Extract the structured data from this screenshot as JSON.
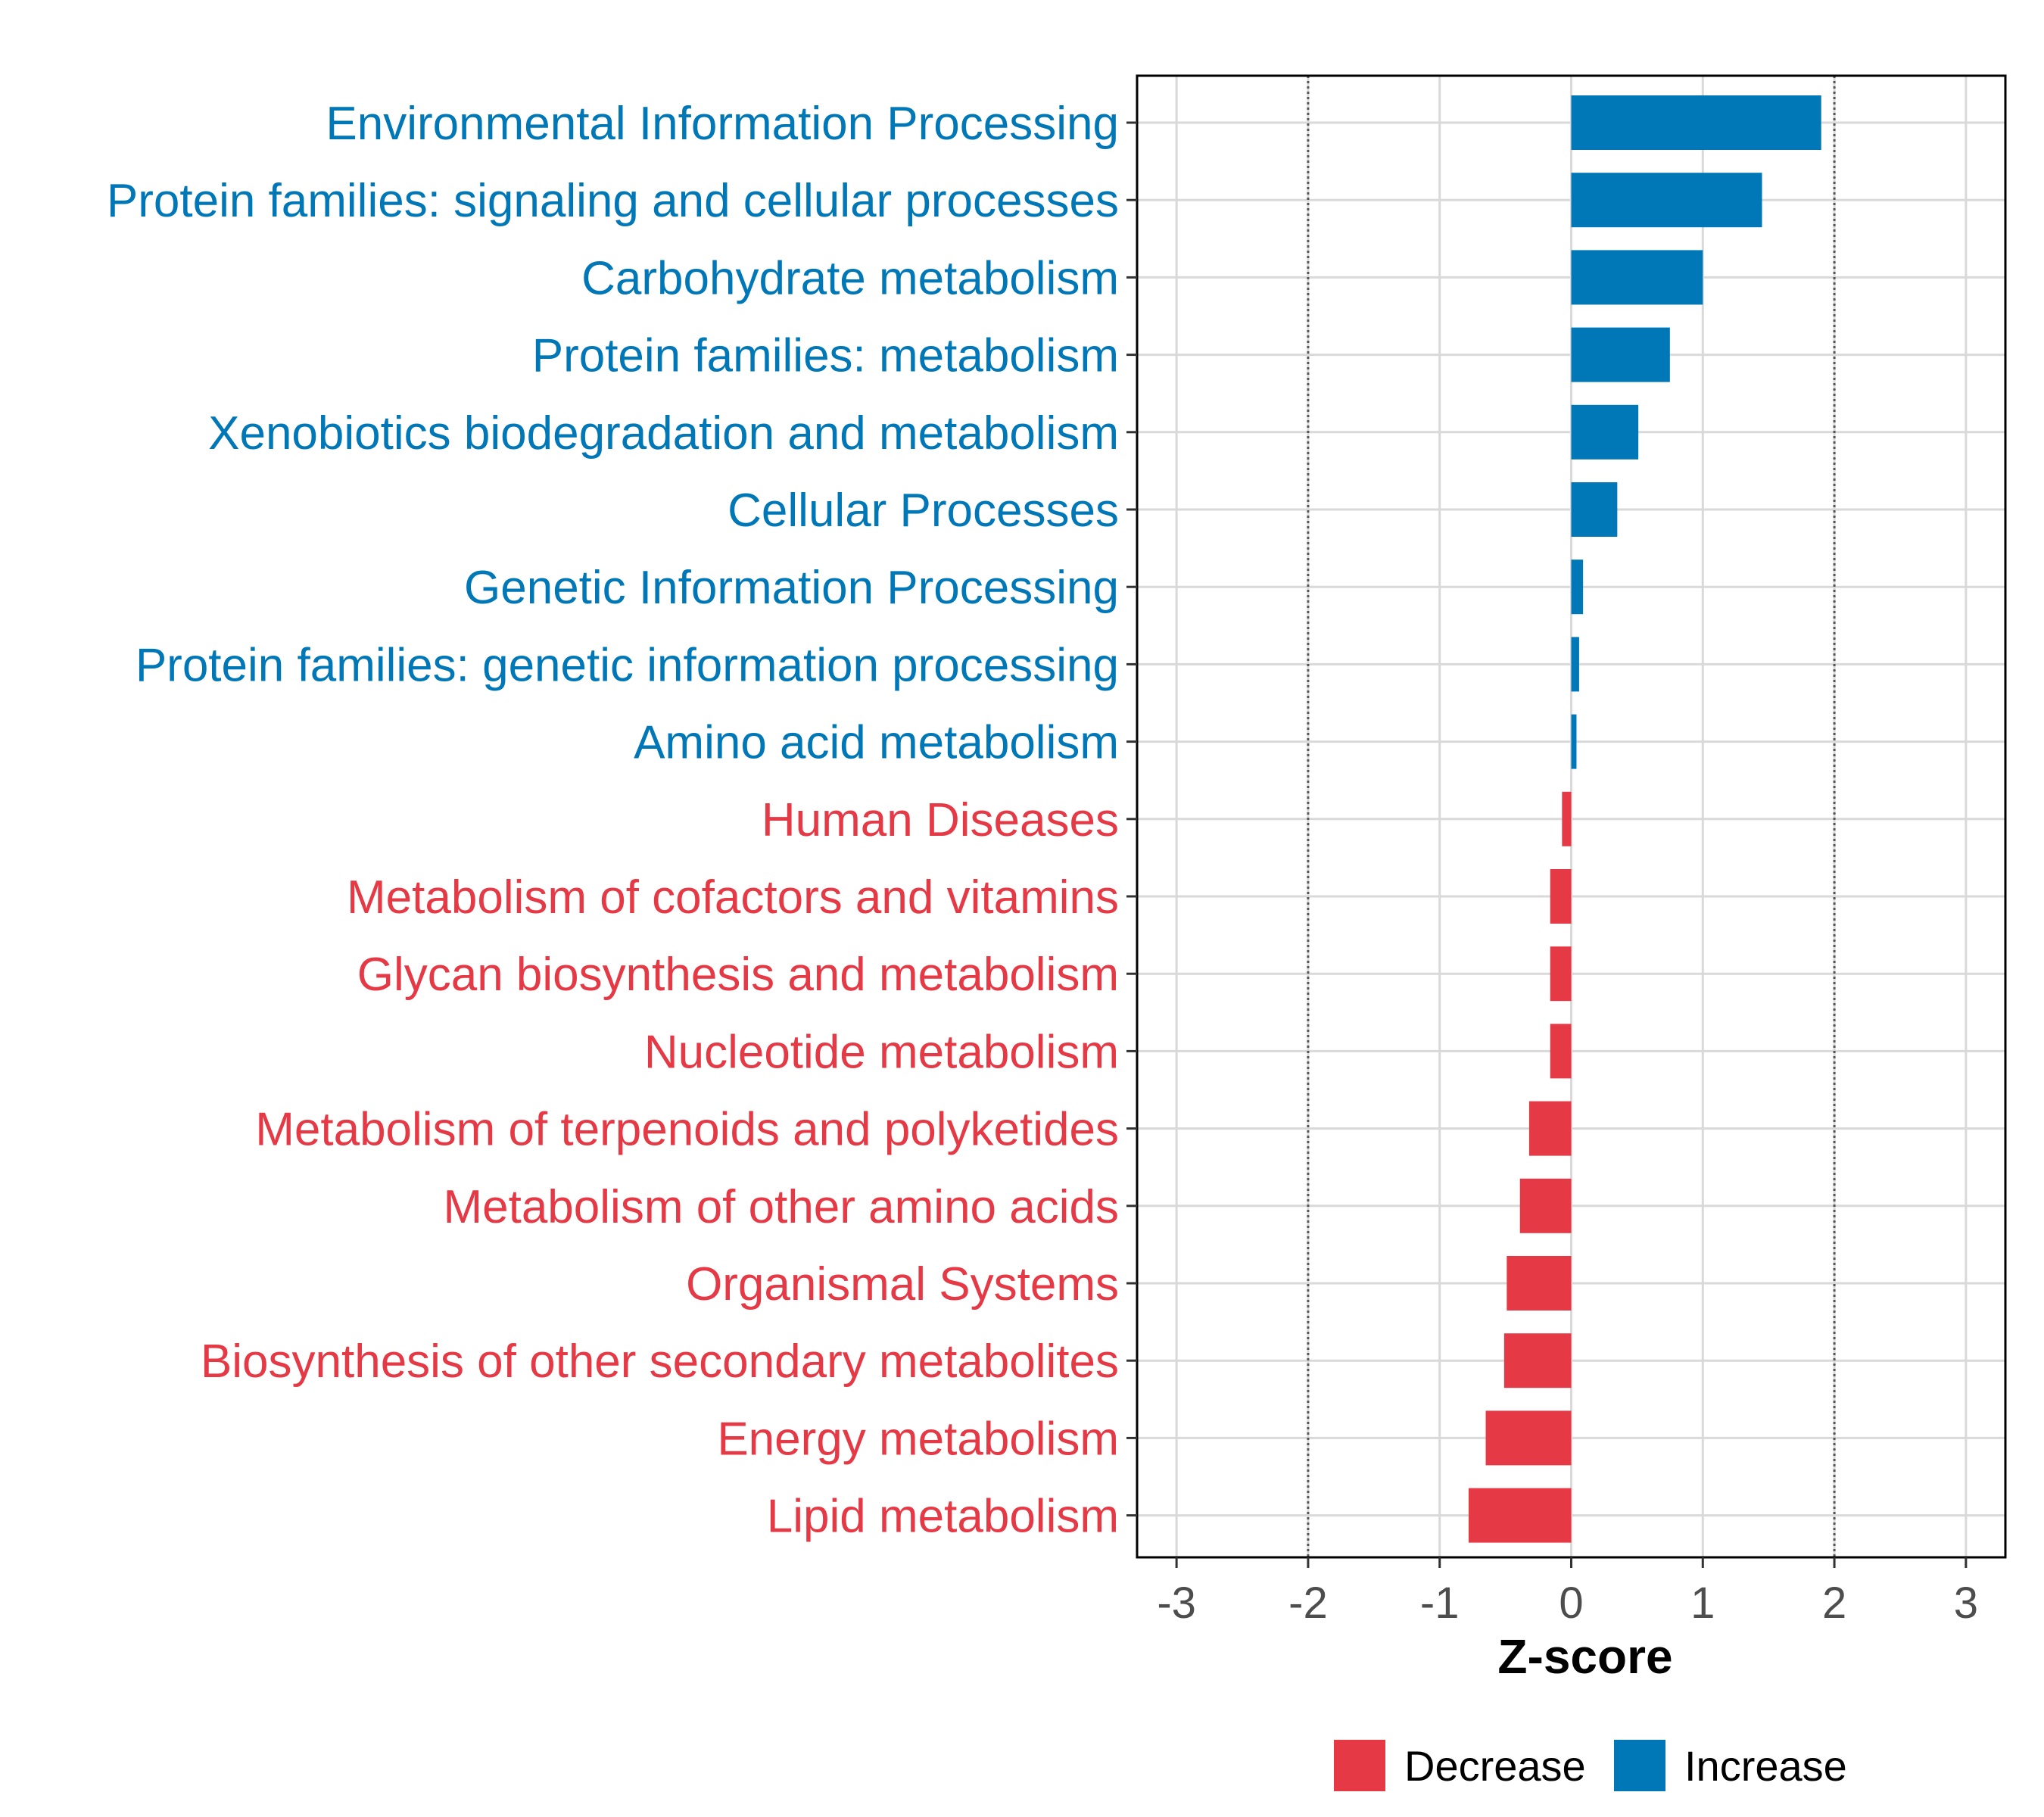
{
  "colors": {
    "decrease": "#E63946",
    "increase": "#0077B6",
    "grid": "#D9D9D9",
    "axis": "#000000",
    "tick_label": "#4D4D4D",
    "threshold_line": "#555555"
  },
  "chart_data": {
    "type": "bar",
    "orientation": "horizontal",
    "xlabel": "Z-score",
    "xlim": [
      -3.3,
      3.3
    ],
    "xticks": [
      -3,
      -2,
      -1,
      0,
      1,
      2,
      3
    ],
    "xtick_labels": [
      "-3",
      "-2",
      "-1",
      "0",
      "1",
      "2",
      "3"
    ],
    "threshold_lines": [
      -2,
      2
    ],
    "grid": true,
    "legend_position": "bottom",
    "legend": [
      {
        "name": "Decrease",
        "color_key": "decrease"
      },
      {
        "name": "Increase",
        "color_key": "increase"
      }
    ],
    "categories": [
      "Environmental Information Processing",
      "Protein families: signaling and cellular processes",
      "Carbohydrate metabolism",
      "Protein families: metabolism",
      "Xenobiotics biodegradation and metabolism",
      "Cellular Processes",
      "Genetic Information Processing",
      "Protein families: genetic information processing",
      "Amino acid metabolism",
      "Human Diseases",
      "Metabolism of cofactors and vitamins",
      "Glycan biosynthesis and metabolism",
      "Nucleotide metabolism",
      "Metabolism of terpenoids and polyketides",
      "Metabolism of other amino acids",
      "Organismal Systems",
      "Biosynthesis of other secondary metabolites",
      "Energy metabolism",
      "Lipid metabolism"
    ],
    "values": [
      1.9,
      1.45,
      1.0,
      0.75,
      0.51,
      0.35,
      0.09,
      0.06,
      0.04,
      -0.07,
      -0.16,
      -0.16,
      -0.16,
      -0.32,
      -0.39,
      -0.49,
      -0.51,
      -0.65,
      -0.78
    ],
    "groups": [
      "Increase",
      "Increase",
      "Increase",
      "Increase",
      "Increase",
      "Increase",
      "Increase",
      "Increase",
      "Increase",
      "Decrease",
      "Decrease",
      "Decrease",
      "Decrease",
      "Decrease",
      "Decrease",
      "Decrease",
      "Decrease",
      "Decrease",
      "Decrease"
    ]
  }
}
